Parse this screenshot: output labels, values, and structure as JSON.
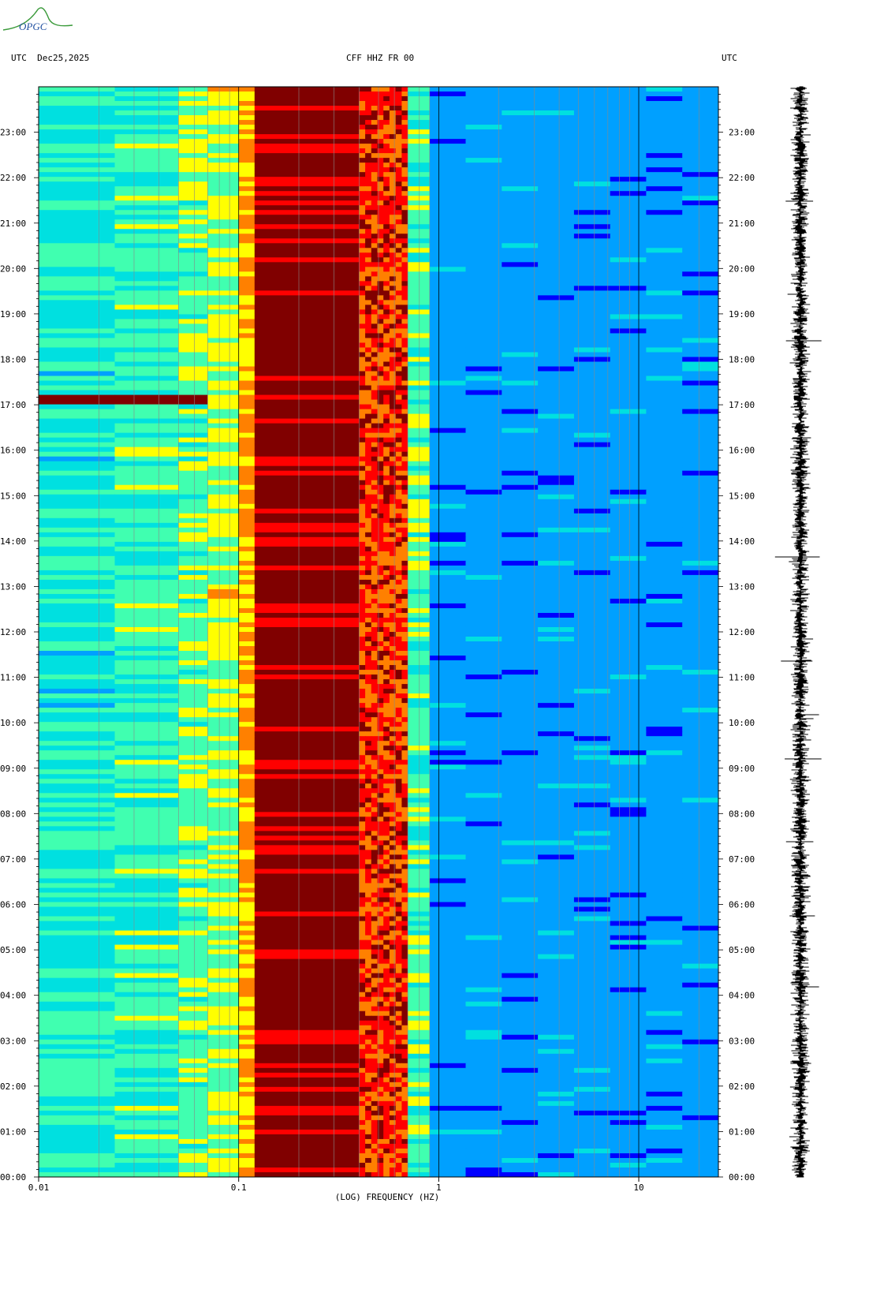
{
  "logo": {
    "text": "OPGC"
  },
  "header": {
    "left": "UTC  Dec25,2025",
    "center": "CFF HHZ FR 00",
    "right": "UTC"
  },
  "chart_data": {
    "type": "heatmap",
    "title": "CFF HHZ FR 00",
    "date": "Dec25,2025",
    "timezone": "UTC",
    "xlabel": "(LOG) FREQUENCY (HZ)",
    "x_scale": "log",
    "xlim": [
      0.01,
      25
    ],
    "x_ticks": [
      {
        "value": 0.01,
        "label": "0.01"
      },
      {
        "value": 0.1,
        "label": "0.1"
      },
      {
        "value": 1,
        "label": "1"
      },
      {
        "value": 10,
        "label": "10"
      }
    ],
    "ylim_hours": [
      0,
      24
    ],
    "y_ticks": [
      "00:00",
      "01:00",
      "02:00",
      "03:00",
      "04:00",
      "05:00",
      "06:00",
      "07:00",
      "08:00",
      "09:00",
      "10:00",
      "11:00",
      "12:00",
      "13:00",
      "14:00",
      "15:00",
      "16:00",
      "17:00",
      "18:00",
      "19:00",
      "20:00",
      "21:00",
      "22:00",
      "23:00"
    ],
    "colormap": [
      "#00007f",
      "#0000ff",
      "#00a0ff",
      "#00e0e0",
      "#40ffb0",
      "#ffff00",
      "#ff8000",
      "#ff0000",
      "#800000"
    ],
    "bands": [
      {
        "f_start": 0.01,
        "f_end": 0.024,
        "level": 0.42
      },
      {
        "f_start": 0.024,
        "f_end": 0.05,
        "level": 0.47
      },
      {
        "f_start": 0.05,
        "f_end": 0.07,
        "level": 0.52
      },
      {
        "f_start": 0.07,
        "f_end": 0.1,
        "level": 0.58
      },
      {
        "f_start": 0.1,
        "f_end": 0.12,
        "level": 0.7
      },
      {
        "f_start": 0.12,
        "f_end": 0.4,
        "level": 1.0
      },
      {
        "f_start": 0.4,
        "f_end": 0.7,
        "level": 0.82
      },
      {
        "f_start": 0.7,
        "f_end": 0.9,
        "level": 0.5
      },
      {
        "f_start": 0.9,
        "f_end": 25,
        "level": 0.18
      }
    ],
    "event_band": {
      "time": "17:00",
      "f_start": 0.01,
      "f_end": 0.07,
      "level": 1.0
    }
  },
  "seismogram": {
    "label": "vertical-trace"
  }
}
